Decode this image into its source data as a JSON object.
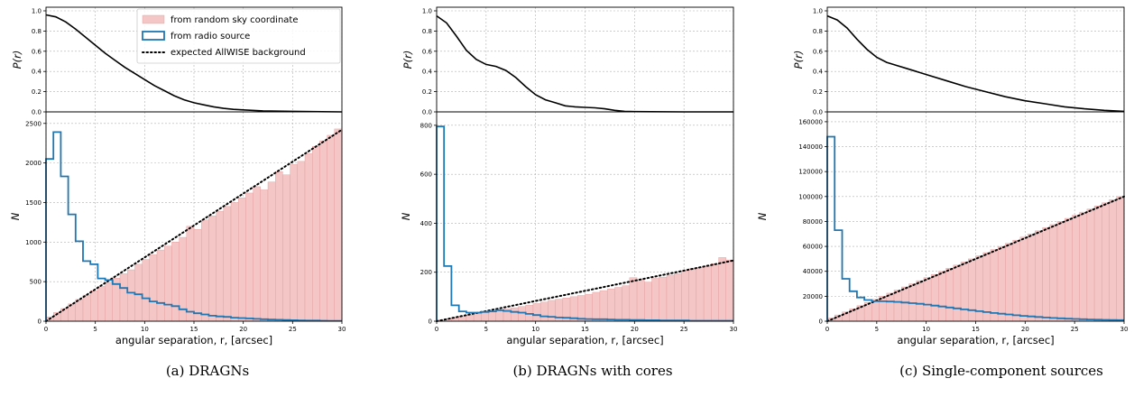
{
  "legend": {
    "random": "from random sky coordinate",
    "radio": "from radio source",
    "expected": "expected AllWISE background"
  },
  "colors": {
    "hist_fill": "#f4c6c6",
    "hist_edge": "#e39a9a",
    "radio_step": "#1f77b4",
    "line": "#000000",
    "grid": "#b0b0b0"
  },
  "captions": [
    "(a) DRAGNs",
    "(b) DRAGNs with cores",
    "(c) Single-component sources"
  ],
  "chart_data": [
    {
      "type": "bar",
      "panel": "a",
      "title": "",
      "top": {
        "ylabel": "P(r)",
        "ylim": [
          0,
          1.0
        ],
        "yticks": [
          "0.0",
          "0.2",
          "0.4",
          "0.6",
          "0.8",
          "1.0"
        ],
        "x": [
          0,
          1,
          2,
          3,
          4,
          5,
          6,
          7,
          8,
          9,
          10,
          11,
          12,
          13,
          14,
          15,
          16,
          17,
          18,
          19,
          20,
          22,
          25,
          30
        ],
        "y": [
          0.96,
          0.94,
          0.89,
          0.82,
          0.74,
          0.66,
          0.58,
          0.51,
          0.44,
          0.38,
          0.32,
          0.26,
          0.21,
          0.16,
          0.12,
          0.09,
          0.07,
          0.05,
          0.035,
          0.025,
          0.02,
          0.01,
          0.005,
          0.0
        ]
      },
      "bottom": {
        "xlabel": "angular separation, r, [arcsec]",
        "ylabel": "N",
        "xlim": [
          0,
          30
        ],
        "ylim": [
          0,
          2600
        ],
        "xticks": [
          "0",
          "5",
          "10",
          "15",
          "20",
          "25",
          "30"
        ],
        "yticks": [
          "0",
          "500",
          "1000",
          "1500",
          "2000",
          "2500"
        ],
        "bin_width": 0.75,
        "random_counts": [
          55,
          110,
          160,
          220,
          275,
          330,
          385,
          440,
          490,
          545,
          600,
          650,
          720,
          780,
          840,
          900,
          950,
          1000,
          1060,
          1200,
          1160,
          1280,
          1330,
          1390,
          1450,
          1500,
          1560,
          1620,
          1700,
          1660,
          1760,
          1890,
          1850,
          1980,
          2020,
          2120,
          2210,
          2280,
          2350,
          2430
        ],
        "radio_counts": [
          2050,
          2390,
          1830,
          1350,
          1010,
          760,
          720,
          540,
          520,
          470,
          420,
          360,
          340,
          290,
          250,
          230,
          210,
          190,
          150,
          120,
          100,
          85,
          70,
          60,
          55,
          45,
          40,
          35,
          30,
          25,
          20,
          18,
          15,
          12,
          10,
          8,
          8,
          6,
          5,
          5
        ],
        "expected": {
          "x": [
            0,
            30
          ],
          "y": [
            0,
            2420
          ]
        }
      }
    },
    {
      "type": "bar",
      "panel": "b",
      "title": "",
      "top": {
        "ylabel": "P(r)",
        "ylim": [
          0,
          1.0
        ],
        "yticks": [
          "0.0",
          "0.2",
          "0.4",
          "0.6",
          "0.8",
          "1.0"
        ],
        "x": [
          0,
          1,
          2,
          3,
          4,
          5,
          6,
          7,
          8,
          9,
          10,
          11,
          12,
          13,
          14,
          15,
          16,
          17,
          18,
          19,
          20,
          25,
          30
        ],
        "y": [
          0.95,
          0.88,
          0.75,
          0.61,
          0.52,
          0.47,
          0.45,
          0.41,
          0.34,
          0.25,
          0.17,
          0.12,
          0.09,
          0.06,
          0.05,
          0.045,
          0.04,
          0.03,
          0.015,
          0.005,
          0.003,
          0.0,
          0.0
        ]
      },
      "bottom": {
        "xlabel": "angular separation, r, [arcsec]",
        "ylabel": "N",
        "xlim": [
          0,
          30
        ],
        "ylim": [
          0,
          840
        ],
        "xticks": [
          "0",
          "5",
          "10",
          "15",
          "20",
          "25",
          "30"
        ],
        "yticks": [
          "0",
          "200",
          "400",
          "600",
          "800"
        ],
        "bin_width": 0.75,
        "random_counts": [
          5,
          10,
          15,
          20,
          25,
          30,
          35,
          40,
          45,
          50,
          55,
          60,
          65,
          72,
          78,
          85,
          90,
          95,
          100,
          105,
          110,
          118,
          125,
          132,
          138,
          145,
          178,
          170,
          160,
          175,
          180,
          188,
          195,
          205,
          215,
          220,
          225,
          235,
          260,
          250
        ],
        "radio_counts": [
          795,
          225,
          65,
          40,
          35,
          35,
          38,
          40,
          45,
          42,
          38,
          35,
          30,
          25,
          20,
          18,
          15,
          14,
          12,
          10,
          9,
          8,
          8,
          7,
          6,
          6,
          5,
          5,
          4,
          4,
          3,
          3,
          3,
          3,
          2,
          2,
          2,
          2,
          2,
          2
        ],
        "expected": {
          "x": [
            0,
            30
          ],
          "y": [
            0,
            248
          ]
        }
      }
    },
    {
      "type": "bar",
      "panel": "c",
      "title": "",
      "top": {
        "ylabel": "P(r)",
        "ylim": [
          0,
          1.0
        ],
        "yticks": [
          "0.0",
          "0.2",
          "0.4",
          "0.6",
          "0.8",
          "1.0"
        ],
        "x": [
          0,
          1,
          2,
          3,
          4,
          5,
          6,
          7,
          8,
          9,
          10,
          12,
          14,
          16,
          18,
          20,
          22,
          24,
          26,
          28,
          30
        ],
        "y": [
          0.95,
          0.91,
          0.83,
          0.72,
          0.62,
          0.54,
          0.49,
          0.46,
          0.43,
          0.4,
          0.37,
          0.31,
          0.25,
          0.2,
          0.15,
          0.11,
          0.08,
          0.05,
          0.03,
          0.015,
          0.005
        ]
      },
      "bottom": {
        "xlabel": "angular separation, r, [arcsec]",
        "ylabel": "N",
        "xlim": [
          0,
          30
        ],
        "ylim": [
          0,
          165000
        ],
        "xticks": [
          "0",
          "5",
          "10",
          "15",
          "20",
          "25",
          "30"
        ],
        "yticks": [
          "0",
          "20000",
          "40000",
          "60000",
          "80000",
          "100000",
          "120000",
          "140000",
          "160000"
        ],
        "bin_width": 0.75,
        "random_counts": [
          2500,
          5000,
          7500,
          10000,
          12500,
          15000,
          17500,
          20000,
          22500,
          25000,
          27500,
          30000,
          32500,
          35000,
          37500,
          40000,
          42500,
          45000,
          47500,
          50000,
          52500,
          55000,
          57500,
          60000,
          62500,
          65000,
          67500,
          70000,
          72500,
          75000,
          77500,
          80000,
          82500,
          85000,
          87500,
          90000,
          92500,
          95000,
          97500,
          100000
        ],
        "radio_counts": [
          148000,
          73000,
          34000,
          24000,
          19000,
          17000,
          16000,
          16000,
          15800,
          15500,
          15000,
          14500,
          14000,
          13300,
          12500,
          11800,
          11000,
          10300,
          9500,
          8800,
          8000,
          7300,
          6600,
          6000,
          5400,
          4800,
          4300,
          3800,
          3400,
          3000,
          2600,
          2300,
          2000,
          1800,
          1600,
          1400,
          1200,
          1100,
          1000,
          900
        ],
        "expected": {
          "x": [
            0,
            30
          ],
          "y": [
            0,
            100000
          ]
        }
      }
    }
  ]
}
